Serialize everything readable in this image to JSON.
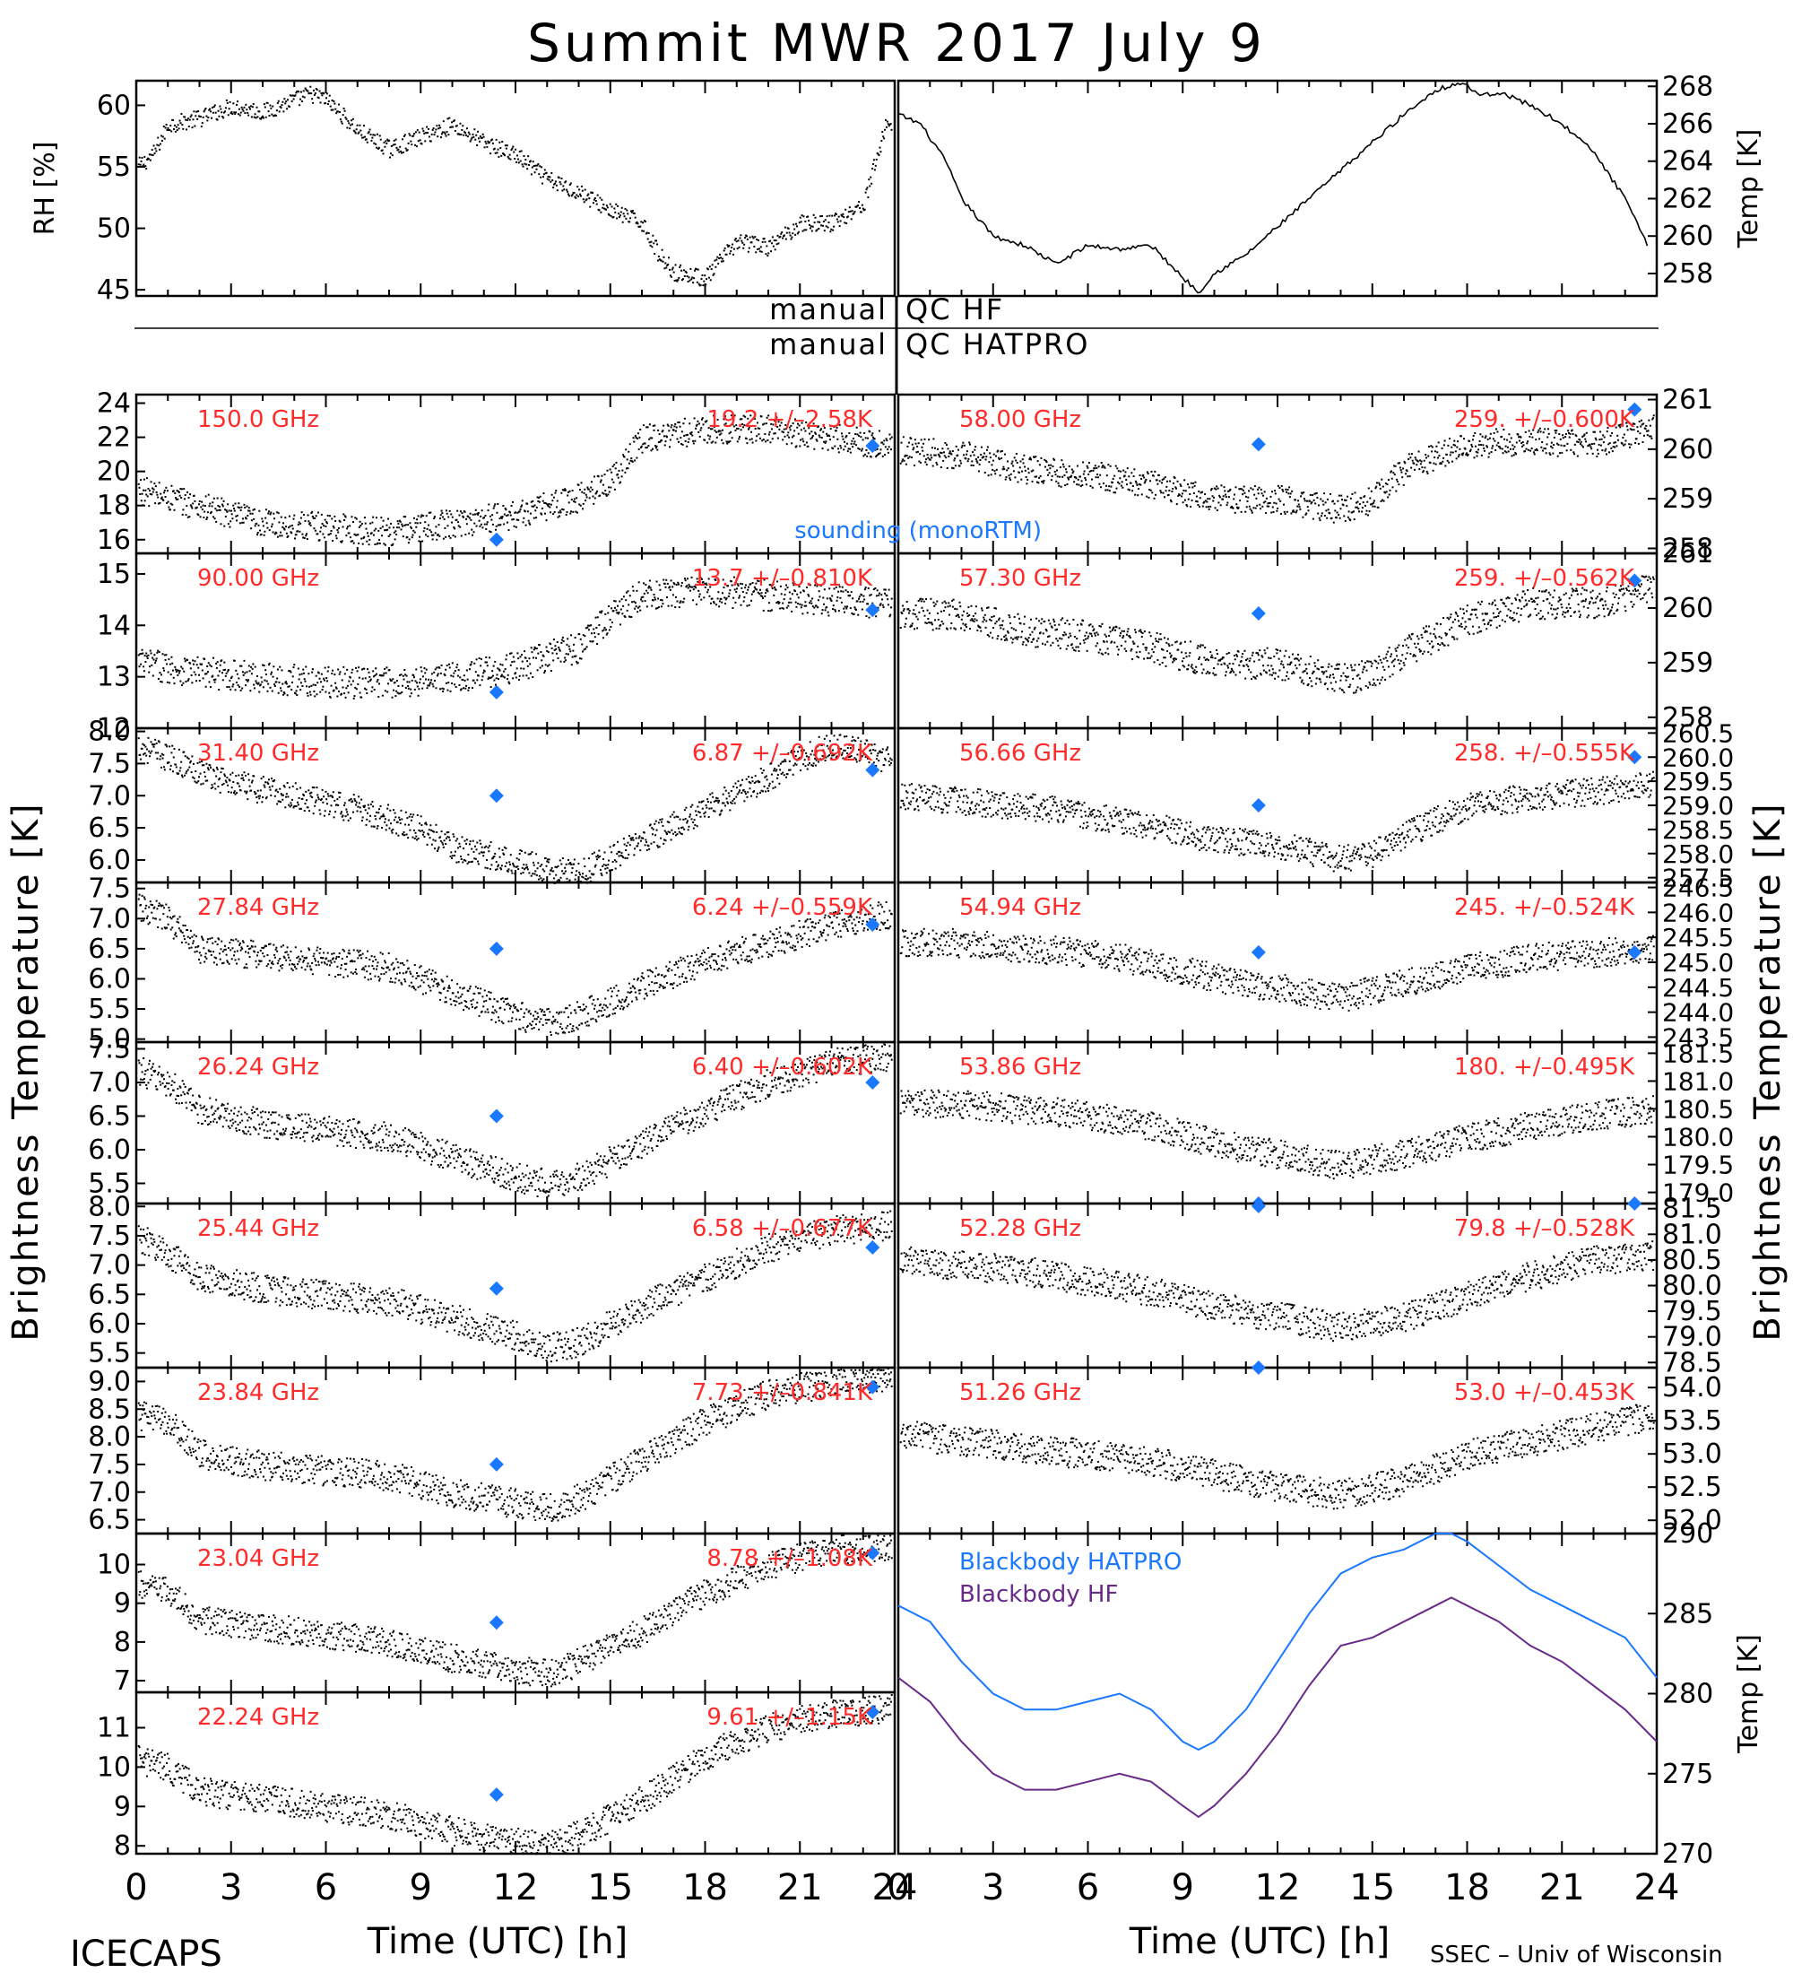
{
  "title": "Summit  MWR  2017  July   9",
  "qc": {
    "hf_left": "manual",
    "hf_right": "QC  HF",
    "hatpro_left": "manual",
    "hatpro_right": "QC  HATPRO"
  },
  "footer": {
    "left": "ICECAPS",
    "credit": "SSEC – Univ of Wisconsin",
    "xlabel_left": "Time  (UTC)  [h]",
    "xlabel_right": "Time  (UTC)  [h]"
  },
  "y_label_left": "Brightness  Temperature  [K]",
  "y_label_right": "Brightness  Temperature  [K]",
  "x_ticks": [
    "0",
    "3",
    "6",
    "9",
    "12",
    "15",
    "18",
    "21",
    "24"
  ],
  "colors": {
    "data": "#000000",
    "annotation": "#ff2a2a",
    "sounding": "#1a78ff",
    "hatpro": "#1a78ff",
    "hf": "#6a2a8a"
  },
  "chart_data": [
    {
      "id": "rh",
      "type": "scatter",
      "ylabel": "RH [%]",
      "ylim": [
        44.5,
        62
      ],
      "yticks": [
        "45",
        "50",
        "55",
        "60"
      ],
      "xlim": [
        0,
        24
      ],
      "x": [
        0,
        0.5,
        1,
        2,
        3,
        4,
        5.5,
        6,
        7,
        8,
        9,
        10,
        11,
        12,
        13,
        14,
        15,
        16,
        16.5,
        17,
        18,
        19,
        20,
        21,
        22,
        23,
        23.7
      ],
      "y": [
        55,
        56,
        58.5,
        59,
        60,
        59.5,
        61,
        60.5,
        58,
        56.5,
        57.5,
        58.5,
        57,
        56,
        54,
        53,
        51.5,
        50.5,
        48,
        46.5,
        46,
        49,
        48.5,
        50.5,
        50.5,
        52,
        58.5
      ]
    },
    {
      "id": "temp",
      "type": "line",
      "ylabel": "Temp [K]",
      "ylim": [
        256.8,
        268.3
      ],
      "yticks": [
        "258",
        "260",
        "262",
        "264",
        "266",
        "268"
      ],
      "xlim": [
        0,
        24
      ],
      "x": [
        0,
        0.7,
        1.5,
        2,
        3,
        4,
        5,
        6,
        7,
        8,
        9,
        9.5,
        10,
        11,
        12,
        13,
        14,
        15,
        16,
        17,
        17.8,
        18.5,
        19,
        20,
        21,
        22,
        23,
        23.7
      ],
      "y": [
        266.5,
        266,
        264,
        262,
        260,
        259.5,
        258.5,
        259.5,
        259.3,
        259.5,
        257.8,
        257,
        258,
        259,
        260.5,
        262,
        263.5,
        265,
        266.5,
        267.8,
        268.2,
        267.5,
        267.7,
        267,
        266,
        264.5,
        262,
        259.5
      ]
    },
    {
      "id": "ch150",
      "type": "scatter",
      "freq": "150.0 GHz",
      "stat": "19.2  +/–2.58K",
      "ylim": [
        15.2,
        24.5
      ],
      "yticks": [
        "16",
        "18",
        "20",
        "22",
        "24"
      ],
      "xlim": [
        0,
        24
      ],
      "x": [
        0,
        2,
        4,
        6,
        8,
        10,
        12,
        14,
        15,
        16,
        18,
        20,
        22,
        24
      ],
      "y": [
        19,
        18,
        17,
        16.8,
        16.5,
        17,
        17.5,
        18.5,
        19.5,
        22,
        22.5,
        22.5,
        22,
        21.5
      ],
      "sounding": [
        {
          "x": 11.4,
          "y": 16
        },
        {
          "x": 23.3,
          "y": 21.5
        }
      ]
    },
    {
      "id": "ch90",
      "type": "scatter",
      "freq": "90.00 GHz",
      "stat": "13.7  +/–0.810K",
      "ylim": [
        12.0,
        15.4
      ],
      "yticks": [
        "12",
        "13",
        "14",
        "15"
      ],
      "xlim": [
        0,
        24
      ],
      "x": [
        0,
        2,
        4,
        6,
        8,
        10,
        12,
        14,
        15,
        16,
        18,
        20,
        22,
        24
      ],
      "y": [
        13.3,
        13.1,
        13.0,
        12.9,
        12.9,
        13.0,
        13.2,
        13.6,
        14.2,
        14.6,
        14.7,
        14.6,
        14.5,
        14.4
      ],
      "sounding": [
        {
          "x": 11.4,
          "y": 12.7
        },
        {
          "x": 23.3,
          "y": 14.3
        }
      ]
    },
    {
      "id": "ch31",
      "type": "scatter",
      "freq": "31.40 GHz",
      "stat": "6.87  +/–0.692K",
      "ylim": [
        5.65,
        8.05
      ],
      "yticks": [
        "6.0",
        "6.5",
        "7.0",
        "7.5",
        "8.0"
      ],
      "xlim": [
        0,
        24
      ],
      "x": [
        0,
        1,
        3,
        5,
        7,
        9,
        10,
        12,
        13,
        14,
        16,
        18,
        20,
        21,
        22,
        23,
        24
      ],
      "y": [
        7.8,
        7.6,
        7.2,
        7.0,
        6.8,
        6.5,
        6.2,
        6.0,
        5.85,
        5.8,
        6.3,
        6.8,
        7.3,
        7.6,
        7.8,
        7.7,
        7.5
      ],
      "sounding": [
        {
          "x": 11.4,
          "y": 7.0
        },
        {
          "x": 23.3,
          "y": 7.4
        }
      ]
    },
    {
      "id": "ch27",
      "type": "scatter",
      "freq": "27.84 GHz",
      "stat": "6.24  +/–0.559K",
      "ylim": [
        4.95,
        7.6
      ],
      "yticks": [
        "5.0",
        "5.5",
        "6.0",
        "6.5",
        "7.0",
        "7.5"
      ],
      "xlim": [
        0,
        24
      ],
      "x": [
        0,
        1,
        2,
        4,
        6,
        8,
        10,
        12,
        13,
        14,
        16,
        18,
        20,
        22,
        24
      ],
      "y": [
        7.2,
        7.0,
        6.5,
        6.4,
        6.3,
        6.2,
        5.8,
        5.4,
        5.3,
        5.4,
        5.9,
        6.3,
        6.6,
        6.9,
        7.1
      ],
      "sounding": [
        {
          "x": 11.4,
          "y": 6.5
        },
        {
          "x": 23.3,
          "y": 6.9
        }
      ]
    },
    {
      "id": "ch26",
      "type": "scatter",
      "freq": "26.24 GHz",
      "stat": "6.40  +/–0.602K",
      "ylim": [
        5.2,
        7.6
      ],
      "yticks": [
        "5.5",
        "6.0",
        "6.5",
        "7.0",
        "7.5"
      ],
      "xlim": [
        0,
        24
      ],
      "x": [
        0,
        1,
        2,
        4,
        6,
        8,
        10,
        12,
        13,
        14,
        16,
        18,
        20,
        22,
        24
      ],
      "y": [
        7.2,
        7.0,
        6.6,
        6.4,
        6.3,
        6.2,
        5.9,
        5.6,
        5.5,
        5.6,
        6.1,
        6.6,
        7.0,
        7.3,
        7.4
      ],
      "sounding": [
        {
          "x": 11.4,
          "y": 6.5
        },
        {
          "x": 23.3,
          "y": 7.0
        }
      ]
    },
    {
      "id": "ch25",
      "type": "scatter",
      "freq": "25.44 GHz",
      "stat": "6.58  +/–0.677K",
      "ylim": [
        5.25,
        8.05
      ],
      "yticks": [
        "5.5",
        "6.0",
        "6.5",
        "7.0",
        "7.5",
        "8.0"
      ],
      "xlim": [
        0,
        24
      ],
      "x": [
        0,
        1,
        2,
        4,
        6,
        8,
        10,
        12,
        13,
        14,
        16,
        18,
        20,
        22,
        24
      ],
      "y": [
        7.5,
        7.2,
        6.8,
        6.6,
        6.5,
        6.4,
        6.1,
        5.8,
        5.6,
        5.7,
        6.3,
        6.8,
        7.3,
        7.6,
        7.7
      ],
      "sounding": [
        {
          "x": 11.4,
          "y": 6.6
        },
        {
          "x": 23.3,
          "y": 7.3
        }
      ]
    },
    {
      "id": "ch23b",
      "type": "scatter",
      "freq": "23.84 GHz",
      "stat": "7.73  +/–0.841K",
      "ylim": [
        6.25,
        9.25
      ],
      "yticks": [
        "6.5",
        "7.0",
        "7.5",
        "8.0",
        "8.5",
        "9.0"
      ],
      "xlim": [
        0,
        24
      ],
      "x": [
        0,
        1,
        2,
        4,
        6,
        8,
        10,
        12,
        13,
        14,
        16,
        18,
        20,
        22,
        24
      ],
      "y": [
        8.4,
        8.3,
        7.7,
        7.5,
        7.4,
        7.3,
        7.0,
        6.8,
        6.7,
        6.9,
        7.6,
        8.3,
        8.8,
        9.0,
        9.1
      ],
      "sounding": [
        {
          "x": 11.4,
          "y": 7.5
        },
        {
          "x": 23.3,
          "y": 8.9
        }
      ]
    },
    {
      "id": "ch23a",
      "type": "scatter",
      "freq": "23.04 GHz",
      "stat": "8.78  +/–1.08K",
      "ylim": [
        6.7,
        10.8
      ],
      "yticks": [
        "7",
        "8",
        "9",
        "10"
      ],
      "xlim": [
        0,
        24
      ],
      "x": [
        0,
        1,
        2,
        4,
        6,
        8,
        10,
        12,
        13,
        14,
        16,
        18,
        20,
        22,
        24
      ],
      "y": [
        9.5,
        9.3,
        8.6,
        8.4,
        8.2,
        8.0,
        7.6,
        7.3,
        7.2,
        7.5,
        8.3,
        9.3,
        10.0,
        10.4,
        10.5
      ],
      "sounding": [
        {
          "x": 11.4,
          "y": 8.5
        },
        {
          "x": 23.3,
          "y": 10.3
        }
      ]
    },
    {
      "id": "ch22",
      "type": "scatter",
      "freq": "22.24 GHz",
      "stat": "9.61  +/–1.15K",
      "ylim": [
        7.8,
        11.9
      ],
      "yticks": [
        "8",
        "9",
        "10",
        "11"
      ],
      "xlim": [
        0,
        24
      ],
      "x": [
        0,
        1,
        2,
        4,
        6,
        8,
        10,
        12,
        13,
        14,
        16,
        18,
        20,
        22,
        24
      ],
      "y": [
        10.2,
        10.0,
        9.4,
        9.2,
        9.0,
        8.8,
        8.4,
        8.1,
        8.0,
        8.3,
        9.2,
        10.3,
        11.0,
        11.4,
        11.5
      ],
      "sounding": [
        {
          "x": 11.4,
          "y": 9.3
        },
        {
          "x": 23.3,
          "y": 11.4
        }
      ]
    },
    {
      "id": "ch58",
      "type": "scatter",
      "freq": "58.00 GHz",
      "stat": "259.  +/–0.600K",
      "ylim": [
        257.9,
        261.1
      ],
      "yticks": [
        "258",
        "259",
        "260",
        "261"
      ],
      "xlim": [
        0,
        24
      ],
      "x": [
        0,
        2,
        4,
        6,
        8,
        10,
        12,
        14,
        15,
        16,
        18,
        20,
        22,
        24
      ],
      "y": [
        260,
        259.9,
        259.6,
        259.5,
        259.3,
        259.0,
        259.0,
        258.8,
        259.0,
        259.6,
        260.1,
        260.2,
        260.1,
        260.5
      ],
      "sounding": [
        {
          "x": 11.4,
          "y": 260.1
        },
        {
          "x": 23.3,
          "y": 260.8
        }
      ]
    },
    {
      "id": "ch57",
      "type": "scatter",
      "freq": "57.30 GHz",
      "stat": "259.  +/–0.562K",
      "ylim": [
        257.8,
        261.0
      ],
      "yticks": [
        "258",
        "259",
        "260",
        "261"
      ],
      "xlim": [
        0,
        24
      ],
      "x": [
        0,
        2,
        4,
        6,
        8,
        10,
        12,
        14,
        15,
        16,
        18,
        20,
        22,
        24
      ],
      "y": [
        259.9,
        259.9,
        259.6,
        259.5,
        259.3,
        259.0,
        259.0,
        258.7,
        258.8,
        259.2,
        259.8,
        260.1,
        260.1,
        260.4
      ],
      "sounding": [
        {
          "x": 11.4,
          "y": 259.9
        },
        {
          "x": 23.3,
          "y": 260.5
        }
      ]
    },
    {
      "id": "ch56",
      "type": "scatter",
      "freq": "56.66 GHz",
      "stat": "258.  +/–0.555K",
      "ylim": [
        257.4,
        260.6
      ],
      "yticks": [
        "257.5",
        "258.0",
        "258.5",
        "259.0",
        "259.5",
        "260.0",
        "260.5"
      ],
      "xlim": [
        0,
        24
      ],
      "x": [
        0,
        2,
        4,
        6,
        8,
        10,
        12,
        14,
        15,
        16,
        18,
        20,
        22,
        24
      ],
      "y": [
        259.2,
        259.1,
        259.0,
        258.8,
        258.6,
        258.3,
        258.2,
        257.9,
        258.0,
        258.4,
        259.0,
        259.2,
        259.3,
        259.5
      ],
      "sounding": [
        {
          "x": 11.4,
          "y": 259.0
        },
        {
          "x": 23.3,
          "y": 260.0
        }
      ]
    },
    {
      "id": "ch54",
      "type": "scatter",
      "freq": "54.94 GHz",
      "stat": "245.  +/–0.524K",
      "ylim": [
        243.4,
        246.6
      ],
      "yticks": [
        "243.5",
        "244.0",
        "244.5",
        "245.0",
        "245.5",
        "246.0",
        "246.5"
      ],
      "xlim": [
        0,
        24
      ],
      "x": [
        0,
        2,
        4,
        6,
        8,
        10,
        12,
        14,
        16,
        18,
        20,
        22,
        24
      ],
      "y": [
        245.4,
        245.4,
        245.3,
        245.2,
        245.0,
        244.7,
        244.5,
        244.3,
        244.6,
        244.9,
        245.1,
        245.2,
        245.3
      ],
      "sounding": [
        {
          "x": 11.4,
          "y": 245.2
        },
        {
          "x": 23.3,
          "y": 245.2
        }
      ]
    },
    {
      "id": "ch53",
      "type": "scatter",
      "freq": "53.86 GHz",
      "stat": "180.  +/–0.495K",
      "ylim": [
        178.8,
        181.7
      ],
      "yticks": [
        "179.0",
        "179.5",
        "180.0",
        "180.5",
        "181.0",
        "181.5"
      ],
      "xlim": [
        0,
        24
      ],
      "x": [
        0,
        2,
        4,
        6,
        8,
        10,
        12,
        14,
        16,
        18,
        20,
        22,
        24
      ],
      "y": [
        180.6,
        180.6,
        180.5,
        180.4,
        180.2,
        179.9,
        179.7,
        179.5,
        179.7,
        180.0,
        180.2,
        180.4,
        180.5
      ],
      "sounding": [
        {
          "x": 11.4,
          "y": 178.8
        }
      ]
    },
    {
      "id": "ch52",
      "type": "scatter",
      "freq": "52.28 GHz",
      "stat": "79.8  +/–0.528K",
      "ylim": [
        78.4,
        81.6
      ],
      "yticks": [
        "78.5",
        "79.0",
        "79.5",
        "80.0",
        "80.5",
        "81.0",
        "81.5"
      ],
      "xlim": [
        0,
        24
      ],
      "x": [
        0,
        2,
        4,
        6,
        8,
        10,
        12,
        14,
        16,
        18,
        20,
        22,
        24
      ],
      "y": [
        80.5,
        80.4,
        80.3,
        80.1,
        79.9,
        79.6,
        79.4,
        79.2,
        79.4,
        79.8,
        80.2,
        80.5,
        80.6
      ],
      "sounding": [
        {
          "x": 11.4,
          "y": 81.55
        },
        {
          "x": 23.3,
          "y": 81.6
        }
      ]
    },
    {
      "id": "ch51",
      "type": "scatter",
      "freq": "51.26 GHz",
      "stat": "53.0  +/–0.453K",
      "ylim": [
        51.8,
        54.3
      ],
      "yticks": [
        "52.0",
        "52.5",
        "53.0",
        "53.5",
        "54.0"
      ],
      "xlim": [
        0,
        24
      ],
      "x": [
        0,
        2,
        4,
        6,
        8,
        10,
        12,
        14,
        16,
        18,
        20,
        22,
        24
      ],
      "y": [
        53.3,
        53.2,
        53.1,
        53.0,
        52.9,
        52.7,
        52.5,
        52.4,
        52.6,
        53.0,
        53.2,
        53.4,
        53.6
      ],
      "sounding": [
        {
          "x": 11.4,
          "y": 54.3
        }
      ]
    },
    {
      "id": "bb",
      "type": "line",
      "ylabel": "Temp [K]",
      "ylim": [
        270,
        290
      ],
      "yticks": [
        "270",
        "275",
        "280",
        "285",
        "290"
      ],
      "xlim": [
        0,
        24
      ],
      "x": [
        0,
        1,
        2,
        3,
        4,
        5,
        6,
        7,
        8,
        9,
        9.5,
        10,
        11,
        12,
        13,
        14,
        15,
        16,
        17,
        17.5,
        18,
        19,
        20,
        21,
        22,
        23,
        24
      ],
      "series": [
        {
          "name": "Blackbody  HATPRO",
          "values": [
            285.5,
            284.5,
            282,
            280,
            279,
            279,
            279.5,
            280,
            279,
            277,
            276.5,
            277,
            279,
            282,
            285,
            287.5,
            288.5,
            289,
            290,
            290,
            289.5,
            288,
            286.5,
            285.5,
            284.5,
            283.5,
            281
          ]
        },
        {
          "name": "Blackbody  HF",
          "values": [
            281,
            279.5,
            277,
            275,
            274,
            274,
            274.5,
            275,
            274.5,
            273,
            272.3,
            273,
            275,
            277.5,
            280.5,
            283,
            283.5,
            284.5,
            285.5,
            286,
            285.5,
            284.5,
            283,
            282,
            280.5,
            279,
            277
          ]
        }
      ]
    }
  ]
}
